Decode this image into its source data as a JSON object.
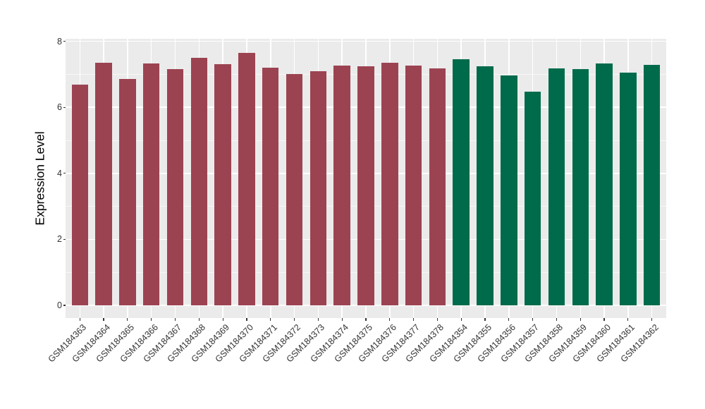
{
  "chart_data": {
    "type": "bar",
    "ylabel": "Expression Level",
    "xlabel": "",
    "ylim": [
      0,
      8
    ],
    "y_major_ticks": [
      0,
      2,
      4,
      6,
      8
    ],
    "y_minor_ticks": [
      1,
      3,
      5,
      7
    ],
    "y_tick_labels": [
      "0",
      "2",
      "4",
      "6",
      "8"
    ],
    "grid": true,
    "legend": "none",
    "panel_background": "#EBEBEB",
    "gridline_color": "#FFFFFF",
    "group_colors": {
      "group1": "#9C4352",
      "group2": "#006B4B"
    },
    "categories": [
      "GSM184363",
      "GSM184364",
      "GSM184365",
      "GSM184366",
      "GSM184367",
      "GSM184368",
      "GSM184369",
      "GSM184370",
      "GSM184371",
      "GSM184372",
      "GSM184373",
      "GSM184374",
      "GSM184375",
      "GSM184376",
      "GSM184377",
      "GSM184378",
      "GSM184354",
      "GSM184355",
      "GSM184356",
      "GSM184357",
      "GSM184358",
      "GSM184359",
      "GSM184360",
      "GSM184361",
      "GSM184362"
    ],
    "bars": [
      {
        "label": "GSM184363",
        "value": 6.69,
        "group": "group1"
      },
      {
        "label": "GSM184364",
        "value": 7.35,
        "group": "group1"
      },
      {
        "label": "GSM184365",
        "value": 6.86,
        "group": "group1"
      },
      {
        "label": "GSM184366",
        "value": 7.33,
        "group": "group1"
      },
      {
        "label": "GSM184367",
        "value": 7.16,
        "group": "group1"
      },
      {
        "label": "GSM184368",
        "value": 7.5,
        "group": "group1"
      },
      {
        "label": "GSM184369",
        "value": 7.31,
        "group": "group1"
      },
      {
        "label": "GSM184370",
        "value": 7.65,
        "group": "group1"
      },
      {
        "label": "GSM184371",
        "value": 7.21,
        "group": "group1"
      },
      {
        "label": "GSM184372",
        "value": 7.01,
        "group": "group1"
      },
      {
        "label": "GSM184373",
        "value": 7.1,
        "group": "group1"
      },
      {
        "label": "GSM184374",
        "value": 7.27,
        "group": "group1"
      },
      {
        "label": "GSM184375",
        "value": 7.24,
        "group": "group1"
      },
      {
        "label": "GSM184376",
        "value": 7.36,
        "group": "group1"
      },
      {
        "label": "GSM184377",
        "value": 7.27,
        "group": "group1"
      },
      {
        "label": "GSM184378",
        "value": 7.19,
        "group": "group1"
      },
      {
        "label": "GSM184354",
        "value": 7.46,
        "group": "group2"
      },
      {
        "label": "GSM184355",
        "value": 7.24,
        "group": "group2"
      },
      {
        "label": "GSM184356",
        "value": 6.97,
        "group": "group2"
      },
      {
        "label": "GSM184357",
        "value": 6.47,
        "group": "group2"
      },
      {
        "label": "GSM184358",
        "value": 7.19,
        "group": "group2"
      },
      {
        "label": "GSM184359",
        "value": 7.15,
        "group": "group2"
      },
      {
        "label": "GSM184360",
        "value": 7.32,
        "group": "group2"
      },
      {
        "label": "GSM184361",
        "value": 7.06,
        "group": "group2"
      },
      {
        "label": "GSM184362",
        "value": 7.29,
        "group": "group2"
      }
    ]
  }
}
